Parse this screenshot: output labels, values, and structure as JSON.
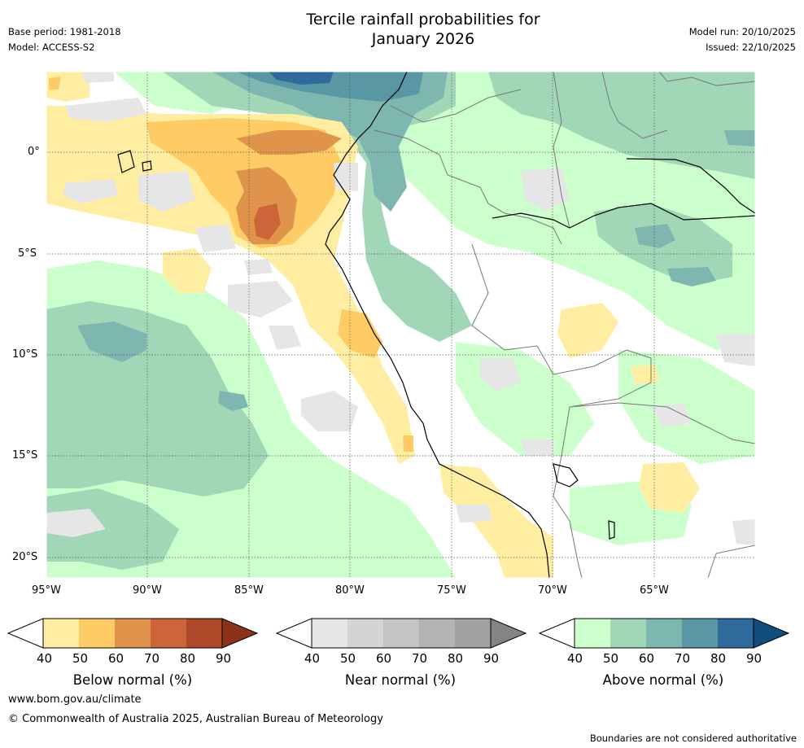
{
  "header": {
    "title_line1": "Tercile rainfall probabilities for",
    "title_line2": "January 2026",
    "base_period": "Base period: 1981-2018",
    "model": "Model: ACCESS-S2",
    "model_run": "Model run: 20/10/2025",
    "issued": "Issued: 22/10/2025"
  },
  "map": {
    "lat_labels": [
      "0°",
      "5°S",
      "10°S",
      "15°S",
      "20°S"
    ],
    "lon_labels": [
      "95°W",
      "90°W",
      "85°W",
      "80°W",
      "75°W",
      "70°W",
      "65°W"
    ]
  },
  "colorbars": {
    "below": {
      "label": "Below normal (%)",
      "ticks": [
        "40",
        "50",
        "60",
        "70",
        "80",
        "90"
      ],
      "colors": [
        "#ffeea1",
        "#fecb65",
        "#e0934a",
        "#cc6537",
        "#ad4828",
        "#8c3219"
      ]
    },
    "near": {
      "label": "Near normal (%)",
      "ticks": [
        "40",
        "50",
        "60",
        "70",
        "80",
        "90"
      ],
      "colors": [
        "#e6e6e6",
        "#d4d4d4",
        "#c4c4c4",
        "#b3b3b3",
        "#a2a2a2",
        "#848484"
      ]
    },
    "above": {
      "label": "Above normal (%)",
      "ticks": [
        "40",
        "50",
        "60",
        "70",
        "80",
        "90"
      ],
      "colors": [
        "#cbffcc",
        "#a1d6b7",
        "#7eb6b0",
        "#5a97a5",
        "#2f6a9c",
        "#124d7f"
      ]
    }
  },
  "footer": {
    "url": "www.bom.gov.au/climate",
    "copyright": "© Commonwealth of Australia 2025, Australian Bureau of Meteorology",
    "disclaimer": "Boundaries are not considered authoritative"
  }
}
